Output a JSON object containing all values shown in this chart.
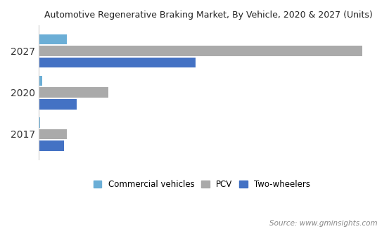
{
  "title": "Automotive Regenerative Braking Market, By Vehicle, 2020 & 2027 (Units)",
  "years": [
    "2017",
    "2020",
    "2027"
  ],
  "categories": [
    "Commercial vehicles",
    "PCV",
    "Two-wheelers"
  ],
  "colors": [
    "#6baed6",
    "#aaaaaa",
    "#4472c4"
  ],
  "values": {
    "2017": [
      0.5,
      8.0,
      7.2
    ],
    "2020": [
      1.0,
      20.0,
      11.0
    ],
    "2027": [
      8.0,
      93.0,
      45.0
    ]
  },
  "source_text": "Source: www.gminsights.com",
  "background_color": "#ffffff",
  "bar_height": 0.28,
  "bar_gap": 0.005
}
